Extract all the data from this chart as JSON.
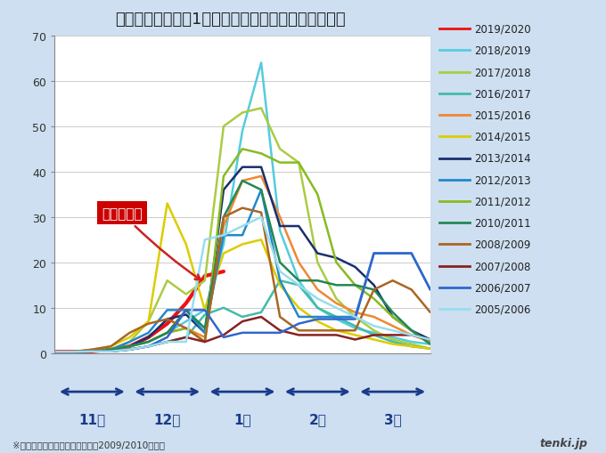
{
  "title": "インフルエンザ　1医療機関あたりの患者数（東京）",
  "yticks": [
    0,
    10,
    20,
    30,
    40,
    50,
    60,
    70
  ],
  "background_color": "#cddff0",
  "plot_background_color": "#ffffff",
  "annotation_label": "今シーズン",
  "annotation_box_color": "#cc0000",
  "annotation_text_color": "#ffffff",
  "footnote": "※新型インフルエンザが流行した2009/2010は除く",
  "month_labels": [
    "11月",
    "12月",
    "1月",
    "2月",
    "3月"
  ],
  "arrow_color": "#1a3a8a",
  "gridline_color": "#cccccc",
  "title_fontsize": 13,
  "tick_fontsize": 9,
  "legend_fontsize": 8.5,
  "series": [
    {
      "label": "2019/2020",
      "color": "#ee1111",
      "linewidth": 3.0,
      "data_x": [
        0,
        1,
        2,
        3,
        4,
        5,
        6,
        7,
        8,
        9
      ],
      "data_y": [
        0.3,
        0.3,
        0.4,
        0.8,
        1.5,
        3.5,
        6.5,
        11.0,
        17.0,
        18.0
      ]
    },
    {
      "label": "2018/2019",
      "color": "#55ccdd",
      "linewidth": 1.8,
      "data_x": [
        0,
        1,
        2,
        3,
        4,
        5,
        6,
        7,
        8,
        9,
        10,
        11,
        12,
        13,
        14,
        15,
        16,
        17,
        18,
        19,
        20
      ],
      "data_y": [
        0.3,
        0.3,
        0.4,
        0.8,
        1.5,
        2.5,
        4.5,
        7.0,
        9.5,
        24.0,
        49.0,
        64.0,
        27.0,
        16.0,
        10.0,
        7.5,
        5.5,
        4.5,
        3.5,
        2.5,
        2.0
      ]
    },
    {
      "label": "2017/2018",
      "color": "#aacc44",
      "linewidth": 1.8,
      "data_x": [
        0,
        1,
        2,
        3,
        4,
        5,
        6,
        7,
        8,
        9,
        10,
        11,
        12,
        13,
        14,
        15,
        16,
        17,
        18,
        19,
        20
      ],
      "data_y": [
        0.3,
        0.3,
        0.4,
        0.8,
        2.5,
        7.0,
        16.0,
        13.0,
        16.0,
        50.0,
        53.0,
        54.0,
        45.0,
        42.0,
        20.0,
        12.0,
        8.0,
        5.0,
        3.0,
        2.0,
        1.0
      ]
    },
    {
      "label": "2016/2017",
      "color": "#44bbaa",
      "linewidth": 1.8,
      "data_x": [
        0,
        1,
        2,
        3,
        4,
        5,
        6,
        7,
        8,
        9,
        10,
        11,
        12,
        13,
        14,
        15,
        16,
        17,
        18,
        19,
        20
      ],
      "data_y": [
        0.3,
        0.3,
        0.4,
        0.4,
        0.8,
        1.5,
        2.5,
        3.5,
        8.5,
        10.0,
        8.0,
        9.0,
        16.0,
        15.0,
        10.0,
        8.0,
        6.0,
        4.0,
        2.5,
        1.5,
        1.0
      ]
    },
    {
      "label": "2015/2016",
      "color": "#ee8833",
      "linewidth": 1.8,
      "data_x": [
        0,
        1,
        2,
        3,
        4,
        5,
        6,
        7,
        8,
        9,
        10,
        11,
        12,
        13,
        14,
        15,
        16,
        17,
        18,
        19,
        20
      ],
      "data_y": [
        0.3,
        0.3,
        0.4,
        0.8,
        1.5,
        2.5,
        4.5,
        5.5,
        3.5,
        28.0,
        38.0,
        39.0,
        30.0,
        20.0,
        14.0,
        11.0,
        9.0,
        8.0,
        6.0,
        4.0,
        2.5
      ]
    },
    {
      "label": "2014/2015",
      "color": "#ddcc00",
      "linewidth": 1.8,
      "data_x": [
        0,
        1,
        2,
        3,
        4,
        5,
        6,
        7,
        8,
        9,
        10,
        11,
        12,
        13,
        14,
        15,
        16,
        17,
        18,
        19,
        20
      ],
      "data_y": [
        0.3,
        0.3,
        0.8,
        1.5,
        3.5,
        7.0,
        33.0,
        24.0,
        9.5,
        22.0,
        24.0,
        25.0,
        15.0,
        10.0,
        7.0,
        5.0,
        4.0,
        3.0,
        2.0,
        1.5,
        1.0
      ]
    },
    {
      "label": "2013/2014",
      "color": "#1a2f6e",
      "linewidth": 1.8,
      "data_x": [
        0,
        1,
        2,
        3,
        4,
        5,
        6,
        7,
        8,
        9,
        10,
        11,
        12,
        13,
        14,
        15,
        16,
        17,
        18,
        19,
        20
      ],
      "data_y": [
        0.3,
        0.3,
        0.4,
        0.8,
        1.5,
        3.5,
        7.5,
        8.5,
        4.5,
        36.0,
        41.0,
        41.0,
        28.0,
        28.0,
        22.0,
        21.0,
        19.0,
        15.0,
        8.0,
        5.0,
        3.0
      ]
    },
    {
      "label": "2012/2013",
      "color": "#2288cc",
      "linewidth": 1.8,
      "data_x": [
        0,
        1,
        2,
        3,
        4,
        5,
        6,
        7,
        8,
        9,
        10,
        11,
        12,
        13,
        14,
        15,
        16,
        17,
        18,
        19,
        20
      ],
      "data_y": [
        0.3,
        0.3,
        0.4,
        0.8,
        2.5,
        4.5,
        9.5,
        9.5,
        4.5,
        26.0,
        26.0,
        36.0,
        16.0,
        8.0,
        8.0,
        8.0,
        8.0,
        22.0,
        22.0,
        22.0,
        14.0
      ]
    },
    {
      "label": "2011/2012",
      "color": "#88bb22",
      "linewidth": 1.8,
      "data_x": [
        0,
        1,
        2,
        3,
        4,
        5,
        6,
        7,
        8,
        9,
        10,
        11,
        12,
        13,
        14,
        15,
        16,
        17,
        18,
        19,
        20
      ],
      "data_y": [
        0.3,
        0.3,
        0.4,
        0.8,
        1.5,
        2.5,
        4.5,
        5.5,
        2.5,
        39.0,
        45.0,
        44.0,
        42.0,
        42.0,
        35.0,
        20.0,
        15.0,
        12.0,
        8.0,
        5.0,
        2.0
      ]
    },
    {
      "label": "2010/2011",
      "color": "#228855",
      "linewidth": 1.8,
      "data_x": [
        0,
        1,
        2,
        3,
        4,
        5,
        6,
        7,
        8,
        9,
        10,
        11,
        12,
        13,
        14,
        15,
        16,
        17,
        18,
        19,
        20
      ],
      "data_y": [
        0.3,
        0.3,
        0.4,
        0.8,
        1.5,
        2.5,
        4.5,
        9.5,
        5.5,
        30.0,
        38.0,
        36.0,
        20.0,
        16.0,
        16.0,
        15.0,
        15.0,
        14.0,
        9.0,
        5.0,
        2.0
      ]
    },
    {
      "label": "2008/2009",
      "color": "#aa6622",
      "linewidth": 1.8,
      "data_x": [
        0,
        1,
        2,
        3,
        4,
        5,
        6,
        7,
        8,
        9,
        10,
        11,
        12,
        13,
        14,
        15,
        16,
        17,
        18,
        19,
        20
      ],
      "data_y": [
        0.3,
        0.3,
        0.8,
        1.5,
        4.5,
        6.5,
        7.5,
        5.5,
        2.5,
        30.0,
        32.0,
        31.0,
        8.0,
        5.0,
        5.0,
        5.0,
        5.0,
        14.0,
        16.0,
        14.0,
        9.0
      ]
    },
    {
      "label": "2007/2008",
      "color": "#882222",
      "linewidth": 1.8,
      "data_x": [
        0,
        1,
        2,
        3,
        4,
        5,
        6,
        7,
        8,
        9,
        10,
        11,
        12,
        13,
        14,
        15,
        16,
        17,
        18,
        19,
        20
      ],
      "data_y": [
        0.3,
        0.3,
        0.4,
        0.4,
        0.8,
        1.5,
        2.5,
        3.5,
        2.5,
        4.0,
        7.0,
        8.0,
        5.0,
        4.0,
        4.0,
        4.0,
        3.0,
        4.0,
        4.0,
        4.0,
        3.0
      ]
    },
    {
      "label": "2006/2007",
      "color": "#3366cc",
      "linewidth": 1.8,
      "data_x": [
        0,
        1,
        2,
        3,
        4,
        5,
        6,
        7,
        8,
        9,
        10,
        11,
        12,
        13,
        14,
        15,
        16,
        17,
        18,
        19,
        20
      ],
      "data_y": [
        0.3,
        0.3,
        0.4,
        0.4,
        0.8,
        1.5,
        3.5,
        9.5,
        9.5,
        3.5,
        4.5,
        4.5,
        4.5,
        6.5,
        7.5,
        7.5,
        7.5,
        22.0,
        22.0,
        22.0,
        14.0
      ]
    },
    {
      "label": "2005/2006",
      "color": "#99ddee",
      "linewidth": 1.8,
      "data_x": [
        0,
        1,
        2,
        3,
        4,
        5,
        6,
        7,
        8,
        9,
        10,
        11,
        12,
        13,
        14,
        15,
        16,
        17,
        18,
        19,
        20
      ],
      "data_y": [
        0.3,
        0.3,
        0.4,
        0.4,
        0.8,
        1.5,
        2.5,
        2.5,
        25.0,
        26.0,
        28.0,
        30.0,
        18.0,
        15.0,
        12.0,
        10.0,
        8.0,
        6.0,
        5.0,
        4.0,
        3.0
      ]
    }
  ]
}
